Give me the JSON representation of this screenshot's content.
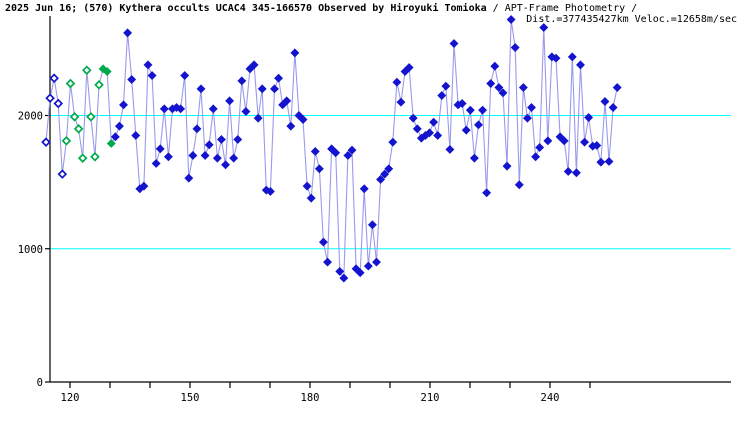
{
  "title": {
    "main_bold": "2025 Jun 16; (570) Kythera occults UCAC4 345-166570 Observed by Hiroyuki Tomioka",
    "main_regular": " / APT-Frame Photometry /",
    "subtitle": "Dist.=377435427km Veloc.=12658m/sec"
  },
  "colors": {
    "background": "#ffffff",
    "axis": "#000000",
    "gridline": "#00ffff",
    "curve_line": "#9a9aec",
    "marker_blue": "#1414cf",
    "marker_green": "#00a94c",
    "marker_open_fill": "#ffffff"
  },
  "chart_data": {
    "type": "line",
    "title": "2025 Jun 16; (570) Kythera occults UCAC4 345-166570 Observed by Hiroyuki Tomioka / APT-Frame Photometry / Dist.=377435427km Veloc.=12658m/sec",
    "xlabel": "",
    "ylabel": "",
    "xlim": [
      114,
      285
    ],
    "ylim": [
      0,
      2740
    ],
    "x_ticks_all": [
      120,
      130,
      140,
      150,
      160,
      170,
      180,
      190,
      200,
      210,
      220,
      230,
      240,
      250
    ],
    "x_ticks_labeled": [
      120,
      150,
      180,
      210,
      240
    ],
    "y_ticks_labeled": [
      0,
      1000,
      2000
    ],
    "gridlines_y": [
      1000,
      2000
    ],
    "grid": "horizontal-cyan-lines",
    "legend_position": "none",
    "marker_kinds_runs": [
      [
        5,
        "open-blue"
      ],
      [
        9,
        "open-green"
      ],
      [
        3,
        "filled-green"
      ],
      [
        124,
        "filled-blue"
      ]
    ],
    "series": [
      {
        "name": "light-curve-intensity",
        "t_start": 114,
        "t_step": 1.02,
        "values": [
          1800,
          2130,
          2280,
          2090,
          1560,
          1810,
          2240,
          1990,
          1900,
          1680,
          2340,
          1990,
          1690,
          2230,
          2350,
          2330,
          1790,
          1840,
          1920,
          2080,
          2620,
          2270,
          1850,
          1450,
          1470,
          2380,
          2300,
          1640,
          1750,
          2050,
          1690,
          2050,
          2060,
          2050,
          2300,
          1530,
          1700,
          1900,
          2200,
          1700,
          1780,
          2050,
          1680,
          1820,
          1630,
          2110,
          1680,
          1820,
          2260,
          2030,
          2350,
          2380,
          1980,
          2200,
          1440,
          1430,
          2200,
          2280,
          2080,
          2110,
          1920,
          2470,
          2000,
          1970,
          1470,
          1380,
          1730,
          1600,
          1050,
          900,
          1750,
          1720,
          830,
          780,
          1700,
          1740,
          850,
          820,
          1450,
          870,
          1180,
          900,
          1520,
          1560,
          1600,
          1800,
          2250,
          2100,
          2330,
          2360,
          1980,
          1900,
          1830,
          1850,
          1870,
          1950,
          1850,
          2150,
          2220,
          1745,
          2540,
          2080,
          2090,
          1890,
          2040,
          1680,
          1930,
          2040,
          1420,
          2240,
          2370,
          2210,
          2170,
          1620,
          2720,
          2510,
          1480,
          2210,
          1980,
          2060,
          1690,
          1760,
          2660,
          1810,
          2440,
          2430,
          1840,
          1810,
          1580,
          2440,
          1570,
          2380,
          1800,
          1985,
          1770,
          1775,
          1650,
          2105,
          1655,
          2060,
          2210
        ]
      }
    ]
  }
}
